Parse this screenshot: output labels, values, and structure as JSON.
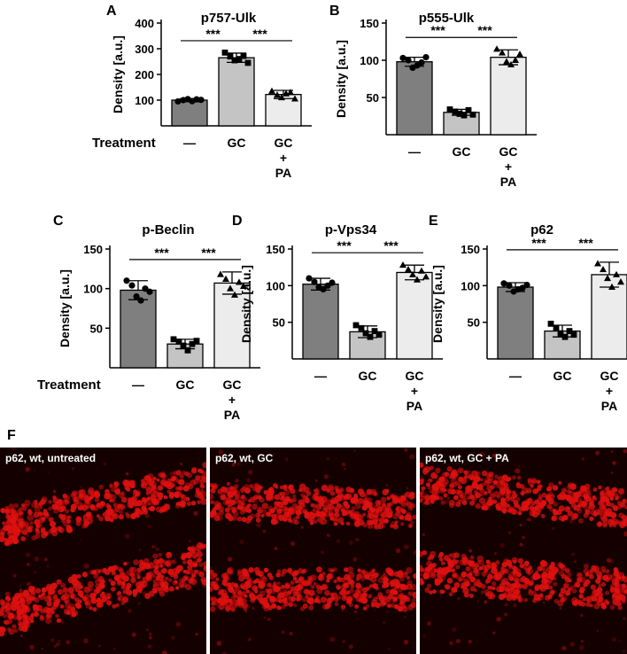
{
  "chart_data": [
    {
      "id": "A",
      "panel_letter": "A",
      "type": "bar",
      "title": "p757-Ulk",
      "ylabel": "Density [a.u.]",
      "ylim": [
        0,
        400
      ],
      "yticks": [
        100,
        200,
        300,
        400
      ],
      "categories": [
        "—",
        "GC",
        "GC + PA"
      ],
      "category_lines": [
        [
          "—"
        ],
        [
          "GC"
        ],
        [
          "GC",
          "+",
          "PA"
        ]
      ],
      "values": [
        100,
        265,
        122
      ],
      "errors": [
        6,
        18,
        16
      ],
      "points": [
        [
          95,
          100,
          104,
          96,
          103,
          101
        ],
        [
          285,
          270,
          255,
          260,
          272,
          245
        ],
        [
          135,
          120,
          110,
          125,
          130,
          105
        ]
      ],
      "significance": [
        {
          "from": 0,
          "to": 1,
          "label": "***"
        },
        {
          "from": 1,
          "to": 2,
          "label": "***"
        }
      ],
      "treatment_label": "Treatment",
      "colors": [
        "#7f7f7f",
        "#c4c4c4",
        "#ececec"
      ],
      "markers": [
        "circle",
        "square",
        "triangle"
      ]
    },
    {
      "id": "B",
      "panel_letter": "B",
      "type": "bar",
      "title": "p555-Ulk",
      "ylabel": "Density [a.u.]",
      "ylim": [
        0,
        150
      ],
      "yticks": [
        50,
        100,
        150
      ],
      "categories": [
        "—",
        "GC",
        "GC + PA"
      ],
      "category_lines": [
        [
          "—"
        ],
        [
          "GC"
        ],
        [
          "GC",
          "+",
          "PA"
        ]
      ],
      "values": [
        98,
        30,
        104
      ],
      "errors": [
        6,
        4,
        10
      ],
      "points": [
        [
          103,
          100,
          90,
          93,
          97,
          104
        ],
        [
          34,
          31,
          28,
          26,
          33,
          27
        ],
        [
          115,
          110,
          98,
          94,
          100,
          108
        ]
      ],
      "significance": [
        {
          "from": 0,
          "to": 1,
          "label": "***"
        },
        {
          "from": 1,
          "to": 2,
          "label": "***"
        }
      ],
      "treatment_label": "",
      "colors": [
        "#7f7f7f",
        "#c4c4c4",
        "#ececec"
      ],
      "markers": [
        "circle",
        "square",
        "triangle"
      ]
    },
    {
      "id": "C",
      "panel_letter": "C",
      "type": "bar",
      "title": "p-Beclin",
      "ylabel": "Density [a.u.]",
      "ylim": [
        0,
        150
      ],
      "yticks": [
        50,
        100,
        150
      ],
      "categories": [
        "—",
        "GC",
        "GC + PA"
      ],
      "category_lines": [
        [
          "—"
        ],
        [
          "GC"
        ],
        [
          "GC",
          "+",
          "PA"
        ]
      ],
      "values": [
        98,
        30,
        107
      ],
      "errors": [
        12,
        6,
        14
      ],
      "points": [
        [
          110,
          104,
          90,
          85,
          100,
          96
        ],
        [
          36,
          33,
          28,
          22,
          30,
          34
        ],
        [
          118,
          112,
          100,
          92,
          108,
          103
        ]
      ],
      "significance": [
        {
          "from": 0,
          "to": 1,
          "label": "***"
        },
        {
          "from": 1,
          "to": 2,
          "label": "***"
        }
      ],
      "treatment_label": "Treatment",
      "colors": [
        "#7f7f7f",
        "#c4c4c4",
        "#ececec"
      ],
      "markers": [
        "circle",
        "square",
        "triangle"
      ]
    },
    {
      "id": "D",
      "panel_letter": "D",
      "type": "bar",
      "title": "p-Vps34",
      "ylabel": "Density [a.u.]",
      "ylim": [
        0,
        150
      ],
      "yticks": [
        50,
        100,
        150
      ],
      "categories": [
        "—",
        "GC",
        "GC + PA"
      ],
      "category_lines": [
        [
          "—"
        ],
        [
          "GC"
        ],
        [
          "GC",
          "+",
          "PA"
        ]
      ],
      "values": [
        102,
        37,
        118
      ],
      "errors": [
        8,
        8,
        10
      ],
      "points": [
        [
          110,
          105,
          98,
          95,
          100,
          104
        ],
        [
          46,
          42,
          35,
          30,
          38,
          33
        ],
        [
          128,
          122,
          115,
          108,
          120,
          112
        ]
      ],
      "significance": [
        {
          "from": 0,
          "to": 1,
          "label": "***"
        },
        {
          "from": 1,
          "to": 2,
          "label": "***"
        }
      ],
      "treatment_label": "",
      "colors": [
        "#7f7f7f",
        "#c4c4c4",
        "#ececec"
      ],
      "markers": [
        "circle",
        "square",
        "triangle"
      ]
    },
    {
      "id": "E",
      "panel_letter": "E",
      "type": "bar",
      "title": "p62",
      "ylabel": "Density [a.u.]",
      "ylim": [
        0,
        150
      ],
      "yticks": [
        50,
        100,
        150
      ],
      "categories": [
        "—",
        "GC",
        "GC + PA"
      ],
      "category_lines": [
        [
          "—"
        ],
        [
          "GC"
        ],
        [
          "GC",
          "+",
          "PA"
        ]
      ],
      "values": [
        98,
        38,
        115
      ],
      "errors": [
        6,
        8,
        17
      ],
      "points": [
        [
          103,
          100,
          92,
          95,
          97,
          101
        ],
        [
          48,
          42,
          35,
          30,
          38,
          33
        ],
        [
          130,
          122,
          110,
          98,
          115,
          105
        ]
      ],
      "significance": [
        {
          "from": 0,
          "to": 1,
          "label": "***"
        },
        {
          "from": 1,
          "to": 2,
          "label": "***"
        }
      ],
      "treatment_label": "",
      "colors": [
        "#7f7f7f",
        "#c4c4c4",
        "#ececec"
      ],
      "markers": [
        "circle",
        "square",
        "triangle"
      ]
    }
  ],
  "panel_f": {
    "letter": "F",
    "images": [
      {
        "label": "p62, wt, untreated"
      },
      {
        "label": "p62, wt, GC"
      },
      {
        "label": "p62, wt, GC + PA"
      }
    ],
    "stain_color": "#e01010",
    "background_color": "#150000"
  }
}
